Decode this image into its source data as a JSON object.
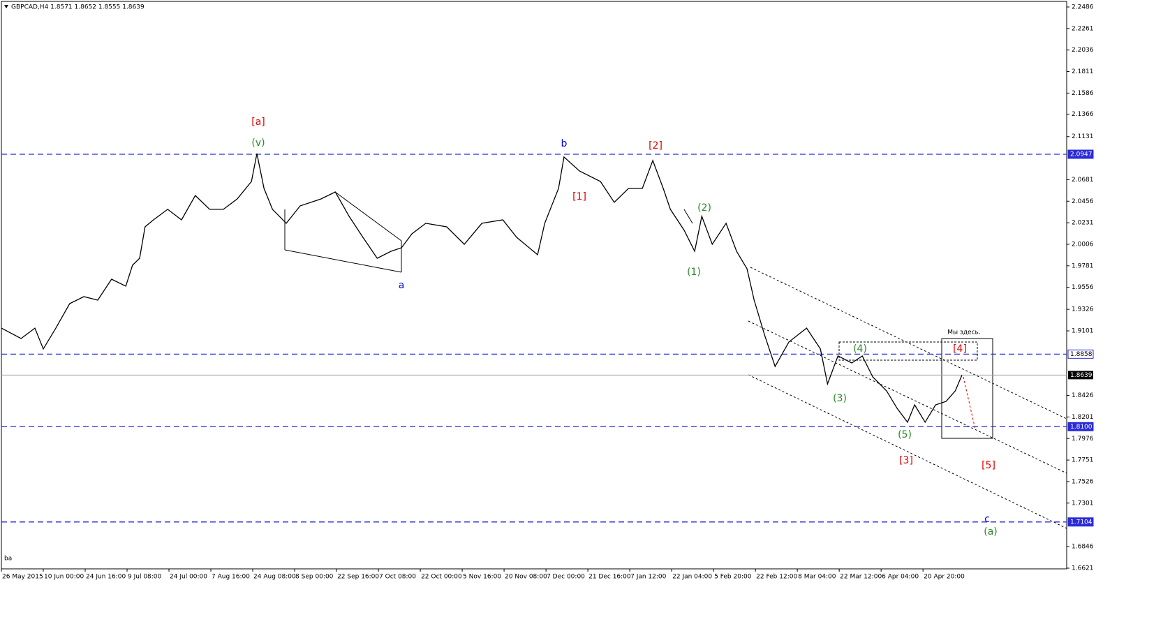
{
  "chart_data": {
    "type": "line",
    "title": "GBPCAD,H4  1.8571 1.8652 1.8555 1.8639",
    "xlim": [
      0,
      25.43
    ],
    "xticks": [
      {
        "value": 0,
        "label": "26 May 2015"
      },
      {
        "value": 1,
        "label": "10 Jun 00:00"
      },
      {
        "value": 2,
        "label": "24 Jun 16:00"
      },
      {
        "value": 3,
        "label": "9 Jul 08:00"
      },
      {
        "value": 4,
        "label": "24 Jul 00:00"
      },
      {
        "value": 5,
        "label": "7 Aug 16:00"
      },
      {
        "value": 6,
        "label": "24 Aug 08:00"
      },
      {
        "value": 7,
        "label": "8 Sep 00:00"
      },
      {
        "value": 8,
        "label": "22 Sep 16:00"
      },
      {
        "value": 9,
        "label": "7 Oct 08:00"
      },
      {
        "value": 10,
        "label": "22 Oct 00:00"
      },
      {
        "value": 11,
        "label": "5 Nov 16:00"
      },
      {
        "value": 12,
        "label": "20 Nov 08:00"
      },
      {
        "value": 13,
        "label": "7 Dec 00:00"
      },
      {
        "value": 14,
        "label": "21 Dec 16:00"
      },
      {
        "value": 15,
        "label": "7 Jan 12:00"
      },
      {
        "value": 16,
        "label": "22 Jan 04:00"
      },
      {
        "value": 17,
        "label": "5 Feb 20:00"
      },
      {
        "value": 18,
        "label": "22 Feb 12:00"
      },
      {
        "value": 19,
        "label": "8 Mar 04:00"
      },
      {
        "value": 20,
        "label": "22 Mar 12:00"
      },
      {
        "value": 21,
        "label": "6 Apr 04:00"
      },
      {
        "value": 22,
        "label": "20 Apr 20:00"
      }
    ],
    "ylim": [
      1.6621,
      2.2486
    ],
    "yticks": [
      2.2486,
      2.2261,
      2.2036,
      2.1811,
      2.1586,
      2.1366,
      2.1131,
      2.0681,
      2.0456,
      2.0231,
      2.0006,
      1.9781,
      1.9556,
      1.9326,
      1.9101,
      1.8426,
      1.8201,
      1.7976,
      1.7751,
      1.7526,
      1.7301,
      1.6846,
      1.6621
    ],
    "series": [
      {
        "color": "#000000",
        "x": [
          0,
          0.47,
          0.8,
          1,
          1.3,
          1.63,
          1.97,
          2.3,
          2.63,
          2.97,
          3.13,
          3.3,
          3.43,
          3.63,
          3.97,
          4.3,
          4.63,
          4.97,
          5.3,
          5.63,
          5.97,
          6.1,
          6.27,
          6.47,
          6.8,
          7.13,
          7.63,
          7.97,
          8.3,
          8.63,
          8.97,
          9.3,
          9.55,
          9.8,
          10.13,
          10.63,
          11.05,
          11.47,
          11.97,
          12.3,
          12.8,
          12.97,
          13.3,
          13.43,
          13.8,
          14.3,
          14.63,
          14.97,
          15.3,
          15.55,
          15.8,
          15.97,
          16.3,
          16.55,
          16.72,
          16.97,
          17.3,
          17.55,
          17.8,
          17.97,
          18.22,
          18.47,
          18.8,
          19.22,
          19.55,
          19.72,
          19.97,
          20.3,
          20.55,
          20.8,
          21.13,
          21.38,
          21.63,
          21.8,
          22.05,
          22.3,
          22.55,
          22.77,
          22.93
        ],
        "values": [
          1.913,
          1.9021,
          1.913,
          1.8912,
          1.913,
          1.9386,
          1.9459,
          1.9422,
          1.9641,
          1.9568,
          1.9787,
          1.986,
          2.0188,
          2.0261,
          2.0371,
          2.0261,
          2.0516,
          2.0371,
          2.0371,
          2.048,
          2.0662,
          2.0954,
          2.0589,
          2.0371,
          2.0225,
          2.0407,
          2.048,
          2.0553,
          2.0298,
          2.0079,
          1.986,
          1.9933,
          1.9969,
          2.0115,
          2.0225,
          2.0188,
          2.0006,
          2.0225,
          2.0261,
          2.0079,
          1.9896,
          2.0225,
          2.0589,
          2.0918,
          2.0772,
          2.0662,
          2.0444,
          2.0589,
          2.0589,
          2.0881,
          2.0589,
          2.0371,
          2.0152,
          1.9933,
          2.0298,
          2.0006,
          2.0225,
          1.9933,
          1.975,
          1.9422,
          1.9057,
          1.8729,
          1.8985,
          1.913,
          1.8912,
          1.8547,
          1.8839,
          1.8766,
          1.8839,
          1.862,
          1.8474,
          1.8292,
          1.8146,
          1.8328,
          1.8146,
          1.8328,
          1.8364,
          1.8474,
          1.8639
        ]
      }
    ],
    "levels": [
      {
        "value": 2.0947,
        "color": "#2b2bd9"
      },
      {
        "value": 1.8858,
        "color": "#2b2bd9"
      },
      {
        "value": 1.81,
        "label": "1.8100",
        "color": "#2b2bd9"
      },
      {
        "value": 1.7104,
        "color": "#2b2bd9"
      }
    ],
    "current_price": {
      "value": 1.8639,
      "color": "#a0a0a0"
    },
    "annotations": [
      {
        "text": "[a]",
        "color": "#e00000"
      },
      {
        "text": "(v)",
        "color": "#2a8a2a"
      },
      {
        "text": "b",
        "color": "#0000e0"
      },
      {
        "text": "[2]",
        "color": "#e00000"
      },
      {
        "text": "[1]",
        "color": "#e00000"
      },
      {
        "text": "(2)",
        "color": "#2a8a2a"
      },
      {
        "text": "a",
        "color": "#0000e0"
      },
      {
        "text": "(1)",
        "color": "#2a8a2a"
      },
      {
        "text": "Мы здесь.",
        "color": "#000000"
      },
      {
        "text": "(4)",
        "color": "#2a8a2a"
      },
      {
        "text": "[4]",
        "color": "#e00000"
      },
      {
        "text": "(3)",
        "color": "#2a8a2a"
      },
      {
        "text": "(5)",
        "color": "#2a8a2a"
      },
      {
        "text": "[3]",
        "color": "#e00000"
      },
      {
        "text": "[5]",
        "color": "#e00000"
      },
      {
        "text": "c",
        "color": "#0000e0"
      },
      {
        "text": "(a)",
        "color": "#2a8a2a"
      },
      {
        "text": "ba",
        "color": "#000000"
      }
    ]
  }
}
